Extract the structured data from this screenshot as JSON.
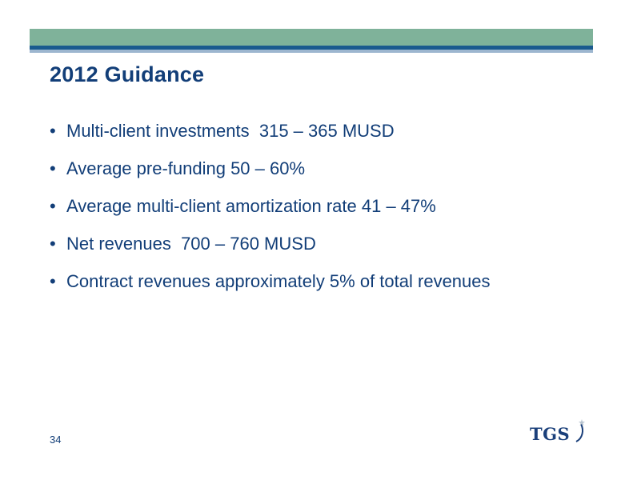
{
  "slide": {
    "title": "2012 Guidance",
    "bullets": [
      "Multi-client investments  315 – 365 MUSD",
      "Average pre-funding 50 – 60%",
      "Average multi-client amortization rate 41 – 47%",
      "Net revenues  700 – 760 MUSD",
      "Contract revenues approximately 5% of total revenues"
    ],
    "page_number": "34",
    "logo_text": "TGS"
  },
  "colors": {
    "band": "#7fb29a",
    "rule": "#1a5a8e",
    "text": "#123e78"
  }
}
